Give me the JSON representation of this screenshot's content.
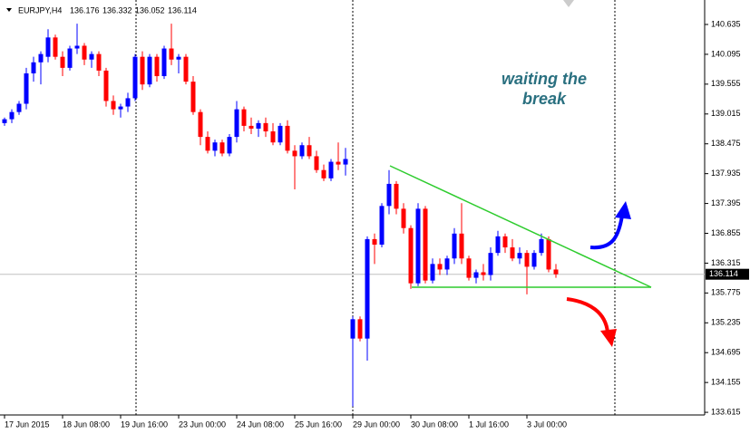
{
  "header": {
    "symbol": "EURJPY,H4",
    "values": [
      136.176,
      136.332,
      136.052,
      136.114
    ]
  },
  "annotation": [
    "waiting the",
    "break"
  ],
  "chart_data": {
    "type": "candlestick",
    "categories": [
      "17 Jun 2015",
      null,
      null,
      null,
      null,
      null,
      null,
      null,
      "18 Jun 08:00",
      null,
      null,
      null,
      null,
      null,
      null,
      null,
      "19 Jun 16:00",
      null,
      null,
      null,
      null,
      null,
      null,
      null,
      "23 Jun 00:00",
      null,
      null,
      null,
      null,
      null,
      null,
      null,
      "24 Jun 08:00",
      null,
      null,
      null,
      null,
      null,
      null,
      null,
      "25 Jun 16:00",
      null,
      null,
      null,
      null,
      null,
      null,
      null,
      "29 Jun 00:00",
      null,
      null,
      null,
      null,
      null,
      null,
      null,
      "30 Jun 08:00",
      null,
      null,
      null,
      null,
      null,
      null,
      null,
      "1 Jul 16:00",
      null,
      null,
      null,
      null,
      null,
      null,
      null,
      "3 Jul 00:00",
      null,
      null,
      null,
      null
    ],
    "open": [
      138.85,
      138.92,
      139.05,
      139.2,
      139.75,
      139.95,
      140.05,
      140.4,
      140.05,
      139.85,
      140.2,
      140.25,
      140.0,
      140.1,
      139.8,
      139.25,
      139.1,
      139.15,
      139.3,
      140.05,
      139.55,
      140.05,
      139.7,
      140.2,
      140.0,
      140.05,
      139.6,
      139.05,
      138.6,
      138.35,
      138.5,
      138.3,
      138.6,
      139.1,
      138.8,
      138.75,
      138.85,
      138.7,
      138.5,
      138.8,
      138.35,
      138.25,
      138.45,
      138.25,
      138.0,
      137.85,
      138.15,
      138.1,
      134.95,
      135.3,
      134.95,
      136.75,
      136.65,
      137.35,
      137.75,
      137.3,
      136.95,
      135.95,
      137.3,
      136.0,
      136.3,
      136.2,
      136.4,
      136.85,
      136.4,
      136.05,
      136.15,
      136.1,
      136.5,
      136.8,
      136.6,
      136.4,
      136.5,
      136.25,
      136.5,
      136.75,
      136.2
    ],
    "high": [
      138.95,
      139.1,
      139.25,
      139.85,
      140.05,
      140.15,
      140.55,
      140.45,
      140.15,
      140.25,
      140.65,
      140.3,
      140.15,
      140.15,
      139.85,
      139.35,
      139.2,
      139.4,
      140.1,
      140.15,
      140.1,
      140.1,
      140.25,
      140.65,
      140.1,
      140.1,
      139.7,
      139.1,
      138.7,
      138.55,
      138.55,
      138.65,
      139.25,
      139.15,
      138.95,
      138.9,
      138.95,
      138.85,
      138.85,
      138.9,
      138.45,
      138.5,
      138.6,
      138.35,
      138.1,
      138.2,
      138.5,
      138.4,
      135.35,
      135.35,
      136.8,
      136.85,
      137.4,
      138.0,
      137.8,
      137.4,
      137.0,
      137.4,
      137.35,
      136.4,
      136.4,
      136.45,
      136.95,
      137.4,
      136.45,
      136.2,
      136.3,
      136.6,
      136.9,
      136.85,
      136.75,
      136.6,
      136.55,
      136.55,
      136.85,
      136.8,
      136.3
    ],
    "low": [
      138.8,
      138.85,
      139.0,
      139.1,
      139.6,
      139.55,
      139.95,
      140.0,
      139.7,
      139.8,
      140.1,
      139.9,
      139.85,
      139.7,
      139.15,
      139.0,
      138.95,
      139.05,
      139.25,
      139.45,
      139.5,
      139.6,
      139.65,
      139.9,
      139.75,
      139.55,
      139.0,
      138.45,
      138.3,
      138.25,
      138.25,
      138.25,
      138.5,
      138.7,
      138.65,
      138.6,
      138.6,
      138.45,
      138.45,
      138.3,
      137.65,
      138.2,
      138.2,
      137.95,
      137.8,
      137.8,
      138.0,
      137.9,
      133.72,
      134.9,
      134.55,
      136.3,
      136.6,
      137.2,
      137.2,
      136.85,
      135.85,
      135.9,
      135.95,
      135.95,
      136.1,
      136.1,
      136.3,
      136.3,
      136.0,
      135.95,
      136.0,
      136.0,
      136.45,
      136.5,
      136.35,
      136.3,
      135.75,
      136.2,
      136.45,
      136.15,
      136.05
    ],
    "close": [
      138.92,
      139.05,
      139.2,
      139.75,
      139.95,
      140.1,
      140.4,
      140.05,
      139.85,
      140.2,
      140.25,
      140.0,
      140.1,
      139.8,
      139.25,
      139.1,
      139.15,
      139.3,
      140.05,
      139.55,
      140.05,
      139.7,
      140.2,
      140.0,
      140.05,
      139.6,
      139.05,
      138.6,
      138.35,
      138.5,
      138.3,
      138.6,
      139.1,
      138.8,
      138.75,
      138.85,
      138.7,
      138.5,
      138.8,
      138.35,
      138.25,
      138.45,
      138.25,
      138.0,
      137.85,
      138.15,
      138.1,
      138.2,
      135.3,
      134.95,
      136.75,
      136.65,
      137.35,
      137.75,
      137.3,
      136.95,
      135.95,
      137.3,
      136.0,
      136.3,
      136.2,
      136.4,
      136.85,
      136.4,
      136.05,
      136.15,
      136.1,
      136.5,
      136.8,
      136.6,
      136.4,
      136.5,
      136.25,
      136.5,
      136.75,
      136.2,
      136.114
    ],
    "up_color": "#0000ff",
    "down_color": "#ff0000",
    "current_price": 136.114,
    "ylim": [
      133.567,
      141.078
    ],
    "yticks": [
      140.635,
      140.095,
      139.555,
      139.015,
      138.475,
      137.935,
      137.395,
      136.855,
      136.315,
      135.775,
      135.235,
      134.695,
      134.155,
      133.615
    ]
  }
}
